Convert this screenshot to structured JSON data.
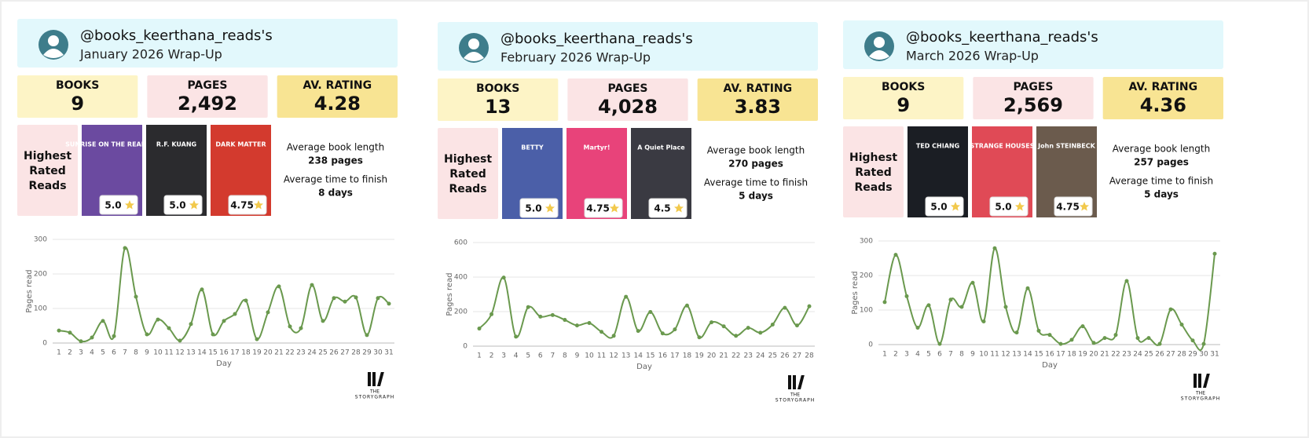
{
  "panels": [
    {
      "handle": "@books_keerthana_reads's",
      "subtitle": "January 2026 Wrap-Up",
      "stats": [
        {
          "label": "BOOKS",
          "value": "9",
          "color": "#fdf4c6"
        },
        {
          "label": "PAGES",
          "value": "2,492",
          "color": "#fbe4e5"
        },
        {
          "label": "AV. RATING",
          "value": "4.28",
          "color": "#f8e493"
        }
      ],
      "highest_label": [
        "Highest",
        "Rated",
        "Reads"
      ],
      "covers": [
        {
          "text": "SUNRISE ON THE REAPING",
          "rating": "5.0",
          "color": "#6b4aa0"
        },
        {
          "text": "R.F. KUANG",
          "rating": "5.0",
          "color": "#2b2b2e"
        },
        {
          "text": "DARK MATTER",
          "rating": "4.75",
          "color": "#d33a2e"
        }
      ],
      "avg_length_label": "Average book length",
      "avg_length": "238 pages",
      "avg_time_label": "Average time to finish",
      "avg_time": "8 days",
      "logo": [
        "THE",
        "STORYGRAPH"
      ]
    },
    {
      "handle": "@books_keerthana_reads's",
      "subtitle": "February 2026 Wrap-Up",
      "stats": [
        {
          "label": "BOOKS",
          "value": "13",
          "color": "#fdf4c6"
        },
        {
          "label": "PAGES",
          "value": "4,028",
          "color": "#fbe4e5"
        },
        {
          "label": "AV. RATING",
          "value": "3.83",
          "color": "#f8e493"
        }
      ],
      "highest_label": [
        "Highest",
        "Rated",
        "Reads"
      ],
      "covers": [
        {
          "text": "BETTY",
          "rating": "5.0",
          "color": "#4b5fa8"
        },
        {
          "text": "Martyr!",
          "rating": "4.75",
          "color": "#e8437a"
        },
        {
          "text": "A Quiet Place",
          "rating": "4.5",
          "color": "#3a3a42"
        }
      ],
      "avg_length_label": "Average book length",
      "avg_length": "270 pages",
      "avg_time_label": "Average time to finish",
      "avg_time": "5 days",
      "logo": [
        "THE",
        "STORYGRAPH"
      ]
    },
    {
      "handle": "@books_keerthana_reads's",
      "subtitle": "March 2026 Wrap-Up",
      "stats": [
        {
          "label": "BOOKS",
          "value": "9",
          "color": "#fdf4c6"
        },
        {
          "label": "PAGES",
          "value": "2,569",
          "color": "#fbe4e5"
        },
        {
          "label": "AV. RATING",
          "value": "4.36",
          "color": "#f8e493"
        }
      ],
      "highest_label": [
        "Highest",
        "Rated",
        "Reads"
      ],
      "covers": [
        {
          "text": "TED CHIANG",
          "rating": "5.0",
          "color": "#1b1e24"
        },
        {
          "text": "STRANGE HOUSES",
          "rating": "5.0",
          "color": "#e04a56"
        },
        {
          "text": "John STEINBECK",
          "rating": "4.75",
          "color": "#6b5b4d"
        }
      ],
      "avg_length_label": "Average book length",
      "avg_length": "257 pages",
      "avg_time_label": "Average time to finish",
      "avg_time": "5 days",
      "logo": [
        "THE",
        "STORYGRAPH"
      ]
    }
  ],
  "chart_data": [
    {
      "type": "line",
      "ylabel": "Pages read",
      "xlabel": "Day",
      "x": [
        1,
        2,
        3,
        4,
        5,
        6,
        7,
        8,
        9,
        10,
        11,
        12,
        13,
        14,
        15,
        16,
        17,
        18,
        19,
        20,
        21,
        22,
        23,
        24,
        25,
        26,
        27,
        28,
        29,
        30,
        31
      ],
      "xlim": [
        1,
        31
      ],
      "ylim": [
        0,
        300
      ],
      "yticks": [
        0,
        100,
        200,
        300
      ],
      "grid": true,
      "color": "#6a994e",
      "values": [
        36,
        30,
        5,
        16,
        64,
        20,
        275,
        134,
        25,
        68,
        43,
        7,
        55,
        155,
        25,
        64,
        84,
        123,
        11,
        89,
        164,
        48,
        43,
        168,
        64,
        130,
        120,
        132,
        23,
        130,
        114
      ]
    },
    {
      "type": "line",
      "ylabel": "Pages read",
      "xlabel": "Day",
      "x": [
        1,
        2,
        3,
        4,
        5,
        6,
        7,
        8,
        9,
        10,
        11,
        12,
        13,
        14,
        15,
        16,
        17,
        18,
        19,
        20,
        21,
        22,
        23,
        24,
        25,
        26,
        27,
        28
      ],
      "xlim": [
        1,
        28
      ],
      "ylim": [
        0,
        600
      ],
      "yticks": [
        0,
        200,
        400,
        600
      ],
      "grid": true,
      "color": "#6a994e",
      "values": [
        102,
        185,
        397,
        55,
        226,
        171,
        180,
        152,
        120,
        134,
        83,
        60,
        286,
        88,
        198,
        74,
        97,
        235,
        51,
        138,
        115,
        60,
        106,
        78,
        125,
        222,
        120,
        231
      ]
    },
    {
      "type": "line",
      "ylabel": "Pages read",
      "xlabel": "Day",
      "x": [
        1,
        2,
        3,
        4,
        5,
        6,
        7,
        8,
        9,
        10,
        11,
        12,
        13,
        14,
        15,
        16,
        17,
        18,
        19,
        20,
        21,
        22,
        23,
        24,
        25,
        26,
        27,
        28,
        29,
        30,
        31
      ],
      "xlim": [
        1,
        31
      ],
      "ylim": [
        0,
        300
      ],
      "yticks": [
        0,
        100,
        200,
        300
      ],
      "grid": true,
      "color": "#6a994e",
      "values": [
        123,
        260,
        140,
        49,
        114,
        2,
        130,
        109,
        179,
        67,
        279,
        109,
        35,
        163,
        40,
        28,
        2,
        14,
        53,
        5,
        19,
        28,
        184,
        19,
        19,
        2,
        102,
        58,
        12,
        2,
        263
      ]
    }
  ]
}
